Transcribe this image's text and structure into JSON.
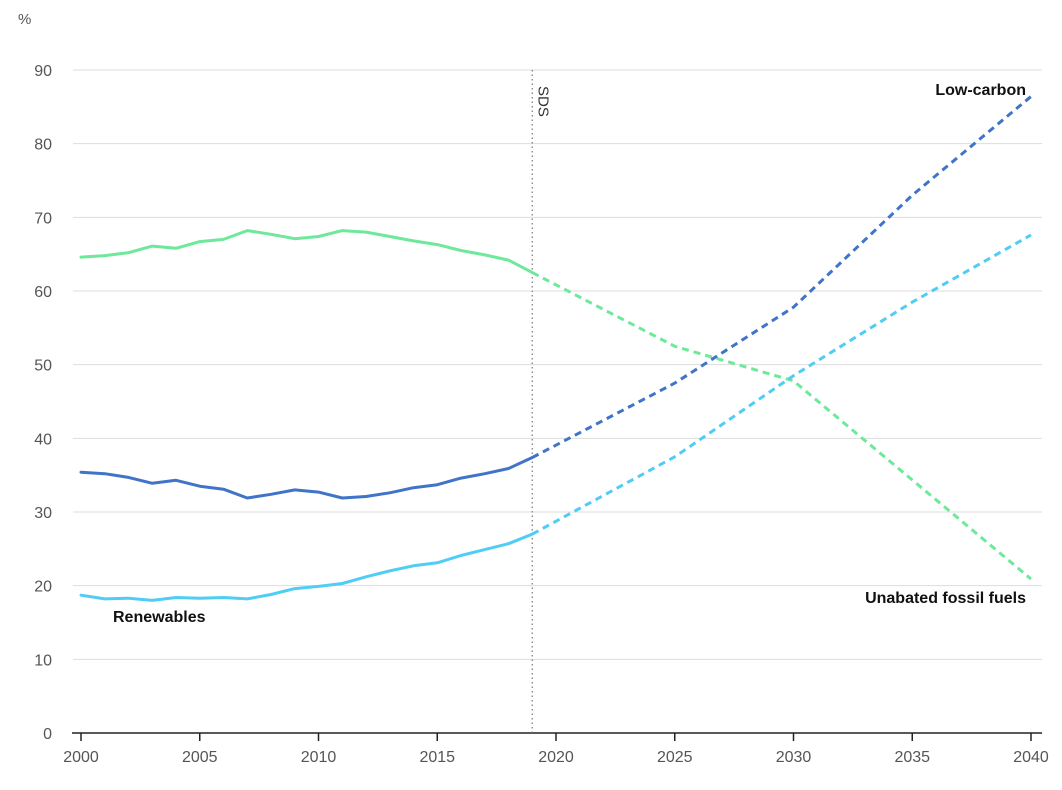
{
  "chart_data": {
    "type": "line",
    "y_unit": "%",
    "ylim": [
      0,
      90
    ],
    "xlim": [
      2000,
      2040
    ],
    "y_ticks": [
      0,
      10,
      20,
      30,
      40,
      50,
      60,
      70,
      80,
      90
    ],
    "x_ticks": [
      2000,
      2005,
      2010,
      2015,
      2020,
      2025,
      2030,
      2035,
      2040
    ],
    "grid": "horizontal",
    "legend": "inline labels",
    "marker": {
      "x": 2019,
      "label": "SDS"
    },
    "series": [
      {
        "name": "Unabated fossil fuels",
        "color": "#6ee89a",
        "historical": {
          "x": [
            2000,
            2001,
            2002,
            2003,
            2004,
            2005,
            2006,
            2007,
            2008,
            2009,
            2010,
            2011,
            2012,
            2013,
            2014,
            2015,
            2016,
            2017,
            2018,
            2019
          ],
          "y": [
            64.6,
            64.8,
            65.2,
            66.1,
            65.8,
            66.7,
            67.0,
            68.2,
            67.7,
            67.1,
            67.4,
            68.2,
            68.0,
            67.4,
            66.8,
            66.3,
            65.5,
            64.9,
            64.2,
            62.5
          ]
        },
        "projected": {
          "x": [
            2019,
            2025,
            2030,
            2040
          ],
          "y": [
            62.5,
            52.5,
            47.8,
            20.9
          ]
        }
      },
      {
        "name": "Low-carbon",
        "color": "#3f74c8",
        "historical": {
          "x": [
            2000,
            2001,
            2002,
            2003,
            2004,
            2005,
            2006,
            2007,
            2008,
            2009,
            2010,
            2011,
            2012,
            2013,
            2014,
            2015,
            2016,
            2017,
            2018,
            2019
          ],
          "y": [
            35.4,
            35.2,
            34.7,
            33.9,
            34.3,
            33.5,
            33.1,
            31.9,
            32.4,
            33.0,
            32.7,
            31.9,
            32.1,
            32.6,
            33.3,
            33.7,
            34.6,
            35.2,
            35.9,
            37.4
          ]
        },
        "projected": {
          "x": [
            2019,
            2025,
            2030,
            2035,
            2040
          ],
          "y": [
            37.4,
            47.5,
            57.8,
            73.0,
            86.4
          ]
        }
      },
      {
        "name": "Renewables",
        "color": "#4fcdf5",
        "historical": {
          "x": [
            2000,
            2001,
            2002,
            2003,
            2004,
            2005,
            2006,
            2007,
            2008,
            2009,
            2010,
            2011,
            2012,
            2013,
            2014,
            2015,
            2016,
            2017,
            2018,
            2019
          ],
          "y": [
            18.7,
            18.2,
            18.3,
            18.0,
            18.4,
            18.3,
            18.4,
            18.2,
            18.8,
            19.6,
            19.9,
            20.3,
            21.2,
            22.0,
            22.7,
            23.1,
            24.1,
            24.9,
            25.7,
            27.0
          ]
        },
        "projected": {
          "x": [
            2019,
            2025,
            2030,
            2035,
            2040
          ],
          "y": [
            27.0,
            37.5,
            48.5,
            58.5,
            67.6
          ]
        }
      }
    ]
  }
}
